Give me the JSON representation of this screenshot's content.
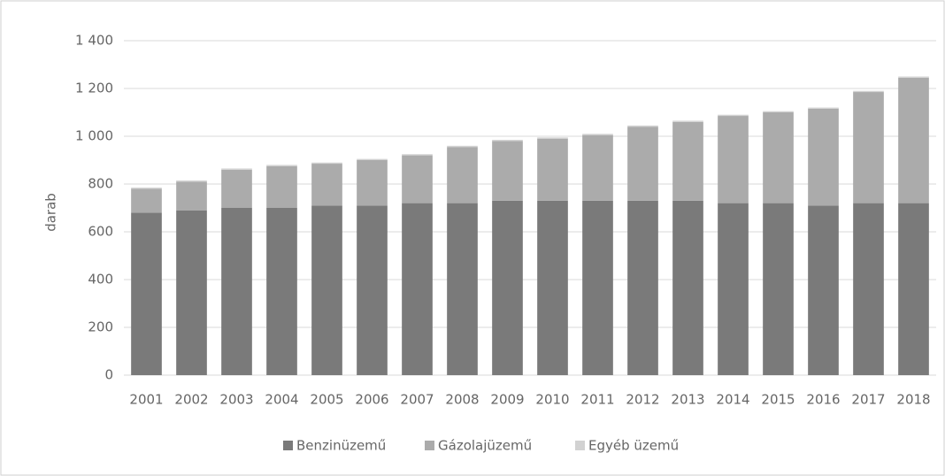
{
  "chart_data": {
    "type": "stacked_bar",
    "ylabel": "darab",
    "categories": [
      "2001",
      "2002",
      "2003",
      "2004",
      "2005",
      "2006",
      "2007",
      "2008",
      "2009",
      "2010",
      "2011",
      "2012",
      "2013",
      "2014",
      "2015",
      "2016",
      "2017",
      "2018"
    ],
    "series": [
      {
        "name": "Benzinüzemű",
        "color": "#7a7a7a",
        "values": [
          680,
          690,
          700,
          700,
          710,
          710,
          720,
          720,
          730,
          730,
          730,
          730,
          730,
          720,
          720,
          710,
          720,
          720
        ]
      },
      {
        "name": "Gázolajüzemű",
        "color": "#ababab",
        "values": [
          100,
          120,
          160,
          175,
          175,
          190,
          200,
          235,
          250,
          260,
          275,
          310,
          330,
          365,
          380,
          405,
          465,
          525
        ]
      },
      {
        "name": "Egyéb üzemű",
        "color": "#d2d2d2",
        "values": [
          5,
          5,
          5,
          5,
          5,
          5,
          5,
          5,
          5,
          5,
          5,
          5,
          5,
          5,
          5,
          5,
          5,
          5
        ]
      }
    ],
    "ylim": [
      0,
      1400
    ],
    "yticks": [
      0,
      200,
      400,
      600,
      800,
      {
        "value": 1000,
        "label": "1 000"
      },
      {
        "value": 1200,
        "label": "1 200"
      },
      {
        "value": 1400,
        "label": "1 400"
      }
    ],
    "grid": true,
    "legend": "bottom"
  }
}
